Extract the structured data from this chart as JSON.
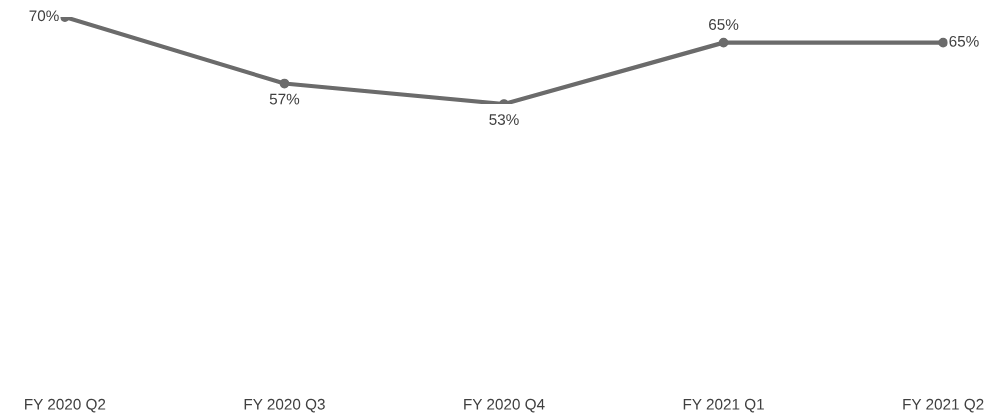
{
  "chart_data": {
    "type": "line",
    "categories": [
      "FY 2020 Q2",
      "FY 2020 Q3",
      "FY 2020 Q4",
      "FY 2021 Q1",
      "FY 2021 Q2"
    ],
    "values": [
      70,
      57,
      53,
      65,
      65
    ],
    "value_labels": [
      "70%",
      "57%",
      "53%",
      "65%",
      "65%"
    ],
    "color": "#6b6b6b",
    "marker": "circle",
    "line_style": "solid",
    "tick_labels": "x",
    "grid": false,
    "legend": false
  }
}
